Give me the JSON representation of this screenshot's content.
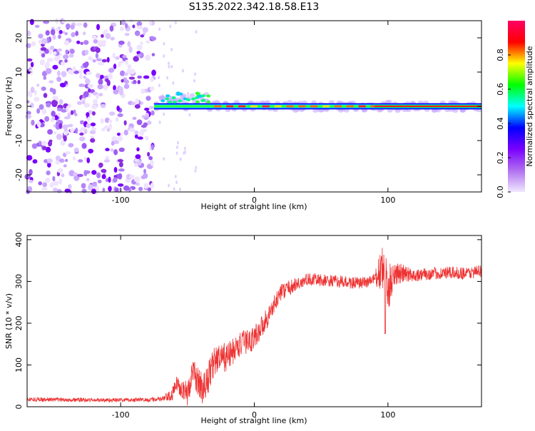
{
  "title": "S135.2022.342.18.58.E13",
  "chart_data": [
    {
      "type": "heatmap",
      "title": "S135.2022.342.18.58.E13",
      "xlabel": "Height of straight line (km)",
      "ylabel": "Frequency (Hz)",
      "xlim": [
        -170,
        170
      ],
      "ylim": [
        -25,
        25
      ],
      "xticks": [
        -100,
        0,
        100
      ],
      "yticks": [
        -20,
        -10,
        0,
        10,
        20
      ],
      "xtick_labels": [
        "-100",
        "0",
        "100"
      ],
      "ytick_labels": [
        "-20",
        "-10",
        "0",
        "10",
        "20"
      ],
      "colorbar": {
        "label": "Normalized spectral amplitude",
        "range": [
          0,
          1
        ],
        "ticks": [
          0.0,
          0.2,
          0.4,
          0.6,
          0.8
        ],
        "tick_labels": [
          "0.0",
          "0.2",
          "0.4",
          "0.6",
          "0.8"
        ],
        "colors": [
          "#f0e8ff",
          "#b070f0",
          "#7a00ff",
          "#0000ff",
          "#00ffff",
          "#00ff00",
          "#ffff00",
          "#ff0000",
          "#ff0066"
        ]
      },
      "features": {
        "noise_region_x": [
          -170,
          -75
        ],
        "signal_start_x": -75,
        "signal_end_x": 170,
        "signal_frequency_hz": 0,
        "strong_carrier_x": [
          90,
          170
        ]
      }
    },
    {
      "type": "line",
      "xlabel": "Height of straight line (km)",
      "ylabel": "SNR (10 * v/v)",
      "xlim": [
        -170,
        170
      ],
      "ylim": [
        0,
        410
      ],
      "xticks": [
        -100,
        0,
        100
      ],
      "yticks": [
        0,
        100,
        200,
        300,
        400
      ],
      "xtick_labels": [
        "-100",
        "0",
        "100"
      ],
      "ytick_labels": [
        "0",
        "100",
        "200",
        "300",
        "400"
      ],
      "color": "#ee3333",
      "x": [
        -170,
        -150,
        -120,
        -100,
        -80,
        -70,
        -62,
        -58,
        -54,
        -50,
        -46,
        -42,
        -38,
        -34,
        -30,
        -20,
        -10,
        0,
        10,
        20,
        30,
        40,
        60,
        80,
        90,
        96,
        100,
        104,
        120,
        140,
        160,
        170
      ],
      "y": [
        18,
        17,
        16,
        16,
        17,
        18,
        25,
        55,
        45,
        30,
        85,
        60,
        40,
        75,
        110,
        120,
        150,
        165,
        215,
        275,
        290,
        305,
        300,
        295,
        305,
        330,
        270,
        320,
        315,
        320,
        320,
        325
      ],
      "noise_amplitude": [
        5,
        5,
        5,
        5,
        5,
        6,
        15,
        20,
        25,
        30,
        30,
        35,
        40,
        40,
        35,
        35,
        30,
        30,
        25,
        20,
        18,
        15,
        15,
        15,
        15,
        60,
        70,
        30,
        15,
        15,
        15,
        15
      ]
    }
  ]
}
